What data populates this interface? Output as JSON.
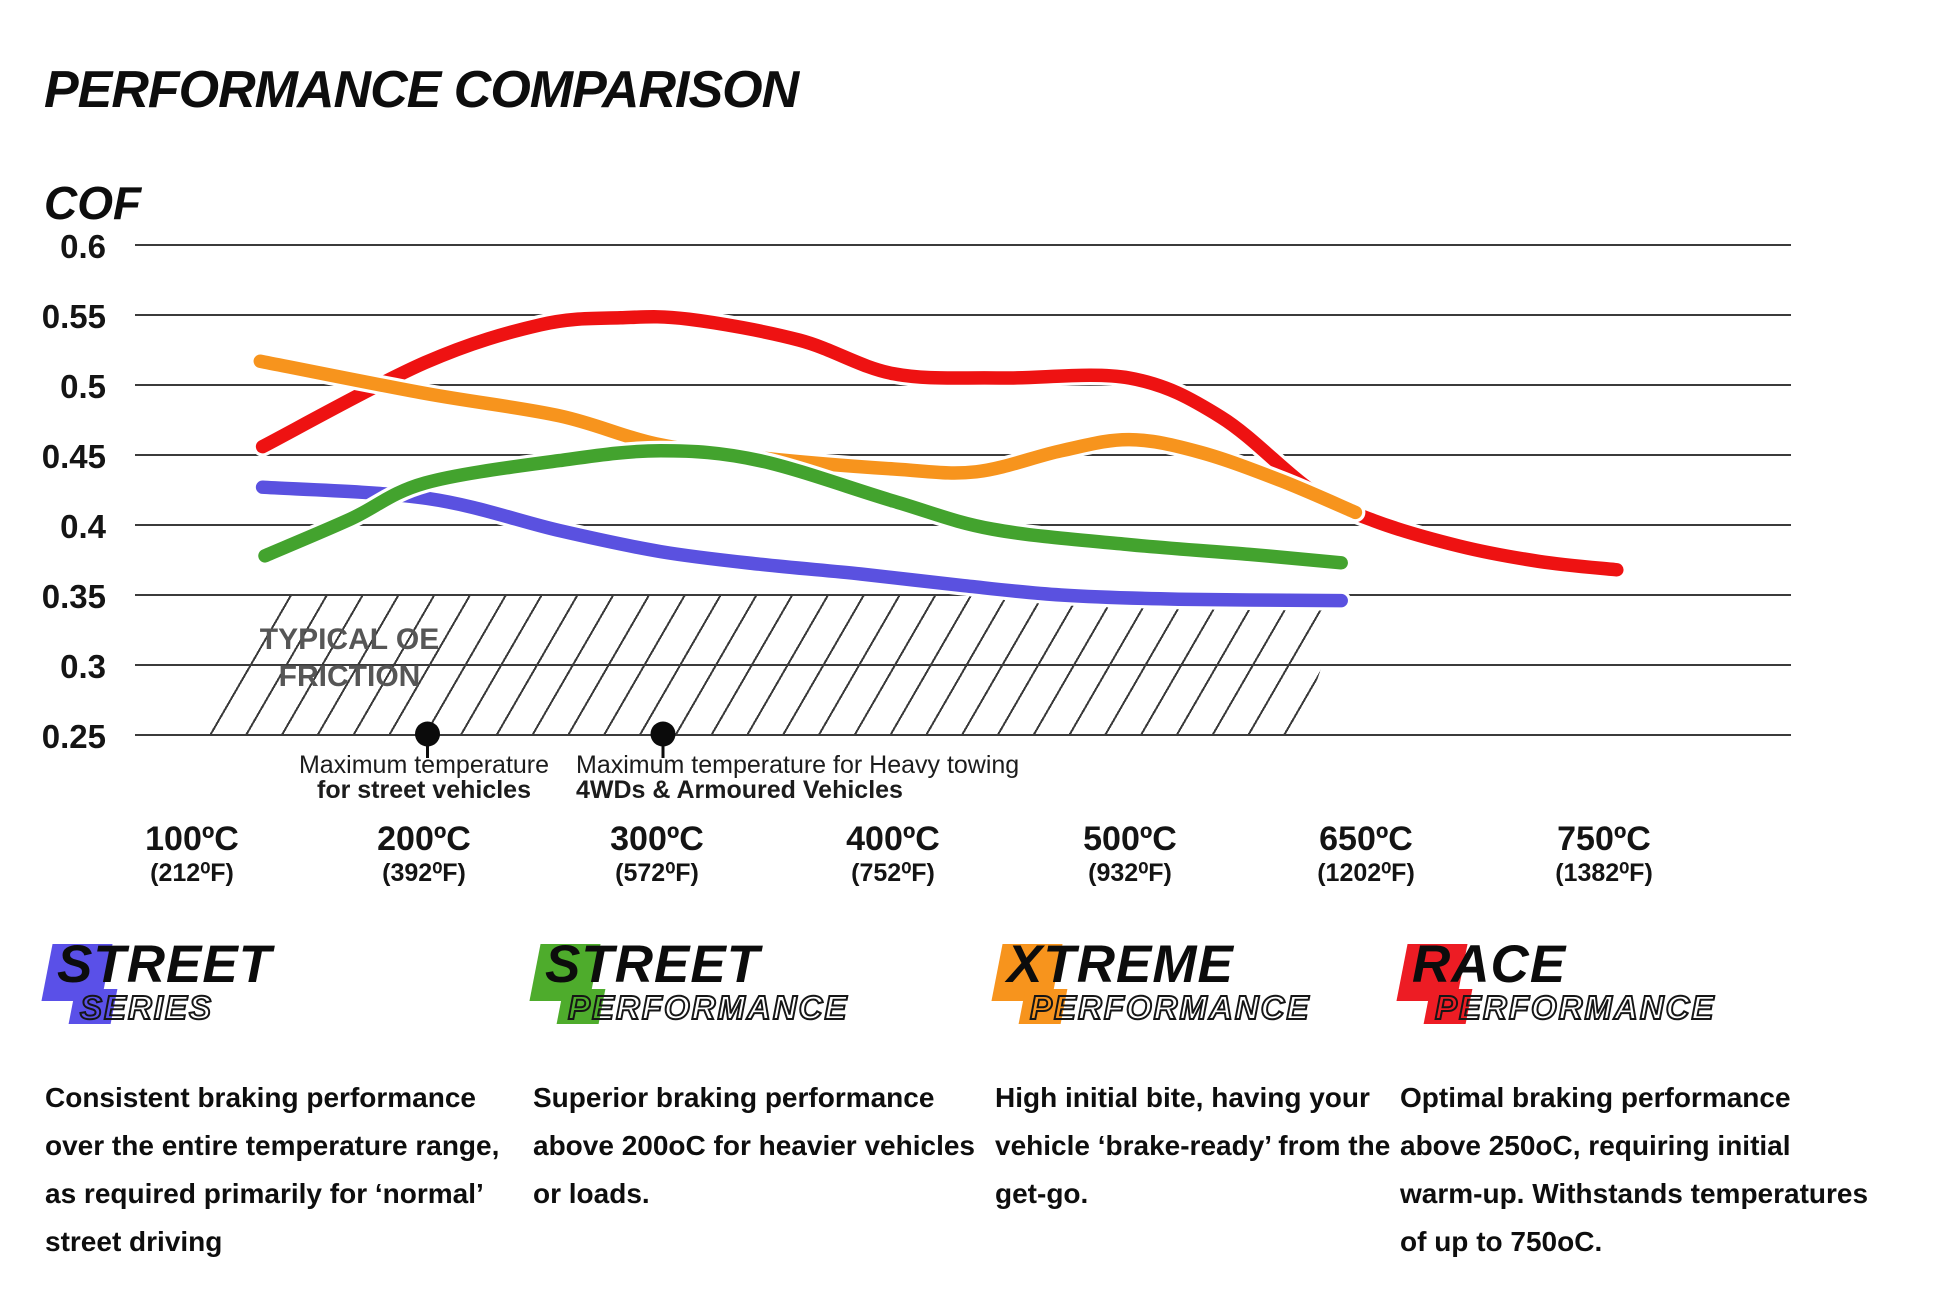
{
  "header": {
    "title": "PERFORMANCE COMPARISON",
    "axis_title": "COF"
  },
  "chart_data": {
    "type": "line",
    "ylabel": "COF",
    "ylim": [
      0.25,
      0.6
    ],
    "grid": "horizontal",
    "ytick_labels": [
      "0.6",
      "0.55",
      "0.5",
      "0.45",
      "0.4",
      "0.35",
      "0.3",
      "0.25"
    ],
    "xticks": [
      {
        "c": "100ºC",
        "f": "(212⁰F)"
      },
      {
        "c": "200ºC",
        "f": "(392⁰F)"
      },
      {
        "c": "300ºC",
        "f": "(572⁰F)"
      },
      {
        "c": "400ºC",
        "f": "(752⁰F)"
      },
      {
        "c": "500ºC",
        "f": "(932⁰F)"
      },
      {
        "c": "650ºC",
        "f": "(1202⁰F)"
      },
      {
        "c": "750ºC",
        "f": "(1382⁰F)"
      }
    ],
    "series": [
      {
        "name": "Race Performance",
        "color": "#EE1212",
        "points": [
          [
            0.3,
            0.456
          ],
          [
            0.99,
            0.516
          ],
          [
            1.48,
            0.543
          ],
          [
            1.82,
            0.548
          ],
          [
            2.11,
            0.547
          ],
          [
            2.58,
            0.532
          ],
          [
            2.98,
            0.508
          ],
          [
            3.43,
            0.505
          ],
          [
            3.98,
            0.505
          ],
          [
            4.37,
            0.477
          ],
          [
            4.75,
            0.425
          ],
          [
            5.02,
            0.403
          ],
          [
            5.38,
            0.385
          ],
          [
            5.72,
            0.374
          ],
          [
            6.05,
            0.368
          ]
        ]
      },
      {
        "name": "Xtreme Performance",
        "color": "#F7941D",
        "points": [
          [
            0.29,
            0.517
          ],
          [
            0.99,
            0.494
          ],
          [
            1.56,
            0.478
          ],
          [
            1.97,
            0.458
          ],
          [
            2.41,
            0.448
          ],
          [
            2.98,
            0.44
          ],
          [
            3.33,
            0.438
          ],
          [
            3.69,
            0.453
          ],
          [
            3.98,
            0.461
          ],
          [
            4.28,
            0.452
          ],
          [
            4.62,
            0.432
          ],
          [
            4.94,
            0.409
          ]
        ]
      },
      {
        "name": "Street Series",
        "color": "#5A51E0",
        "points": [
          [
            0.3,
            0.427
          ],
          [
            1.0,
            0.419
          ],
          [
            1.56,
            0.396
          ],
          [
            1.99,
            0.381
          ],
          [
            2.41,
            0.372
          ],
          [
            2.84,
            0.365
          ],
          [
            3.26,
            0.357
          ],
          [
            3.69,
            0.35
          ],
          [
            4.19,
            0.347
          ],
          [
            4.88,
            0.346
          ]
        ]
      },
      {
        "name": "Street Performance",
        "color": "#43A32E",
        "points": [
          [
            0.31,
            0.378
          ],
          [
            0.67,
            0.404
          ],
          [
            0.99,
            0.43
          ],
          [
            1.56,
            0.446
          ],
          [
            1.99,
            0.453
          ],
          [
            2.41,
            0.446
          ],
          [
            2.98,
            0.417
          ],
          [
            3.4,
            0.397
          ],
          [
            3.98,
            0.386
          ],
          [
            4.49,
            0.379
          ],
          [
            4.88,
            0.373
          ]
        ]
      }
    ],
    "oe_band": {
      "line1": "TYPICAL OE",
      "line2": "FRICTION",
      "cof_range": [
        0.25,
        0.35
      ]
    },
    "markers": [
      {
        "u": 1.0,
        "cof": 0.25,
        "label_line1": "Maximum temperature",
        "label_line2": "for street vehicles"
      },
      {
        "u": 2.0,
        "cof": 0.25,
        "label_line1": "Maximum temperature for Heavy towing",
        "label_line2": "4WDs & Armoured Vehicles"
      }
    ]
  },
  "legend": [
    {
      "word1": "STREET",
      "word2": "SERIES",
      "color": "#5A50E8",
      "description": "Consistent braking performance over the entire temperature range, as required primarily for ‘normal’ street driving"
    },
    {
      "word1": "STREET",
      "word2": "PERFORMANCE",
      "color": "#4EAC2C",
      "description": "Superior braking performance above 200oC for heavier vehicles or loads."
    },
    {
      "word1": "XTREME",
      "word2": "PERFORMANCE",
      "color": "#F7941D",
      "description": "High initial bite, having your vehicle ‘brake-ready’ from the get-go."
    },
    {
      "word1": "RACE",
      "word2": "PERFORMANCE",
      "color": "#ED1C24",
      "description": "Optimal braking performance above 250oC, requiring initial warm-up. Withstands temperatures of up to 750oC."
    }
  ]
}
